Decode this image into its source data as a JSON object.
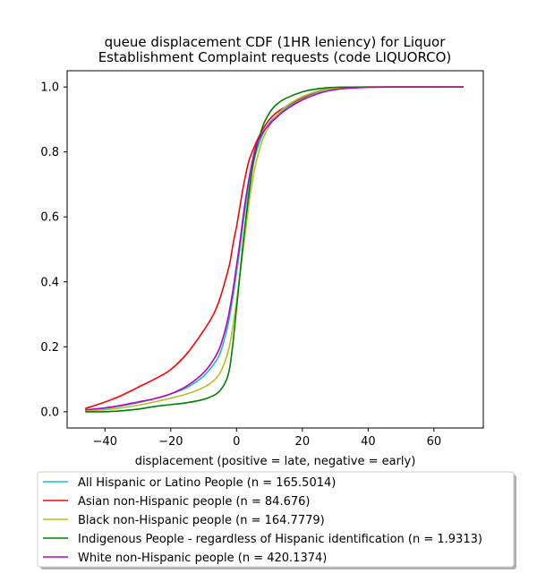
{
  "chart_data": {
    "type": "line",
    "title": [
      "queue displacement CDF (1HR leniency) for Liquor",
      "Establishment Complaint  requests (code LIQUORCO)"
    ],
    "xlabel": "displacement (positive = late, negative = early)",
    "ylabel": "",
    "xlim": [
      -51.5,
      75
    ],
    "ylim": [
      -0.05,
      1.05
    ],
    "xticks": [
      -40,
      -20,
      0,
      20,
      40,
      60
    ],
    "yticks": [
      0.0,
      0.2,
      0.4,
      0.6,
      0.8,
      1.0
    ],
    "grid": false,
    "legend_position": "below",
    "series": [
      {
        "name": "All Hispanic or Latino People (n = 165.5014)",
        "color": "#17becf",
        "points": [
          [
            -46,
            0.005
          ],
          [
            -40,
            0.01
          ],
          [
            -35,
            0.018
          ],
          [
            -30,
            0.028
          ],
          [
            -25,
            0.04
          ],
          [
            -20,
            0.055
          ],
          [
            -15,
            0.075
          ],
          [
            -10,
            0.11
          ],
          [
            -7,
            0.145
          ],
          [
            -5,
            0.18
          ],
          [
            -3,
            0.25
          ],
          [
            -2,
            0.3
          ],
          [
            -1,
            0.36
          ],
          [
            0,
            0.43
          ],
          [
            1,
            0.5
          ],
          [
            2,
            0.58
          ],
          [
            3,
            0.65
          ],
          [
            4,
            0.71
          ],
          [
            5,
            0.76
          ],
          [
            6,
            0.8
          ],
          [
            8,
            0.855
          ],
          [
            10,
            0.89
          ],
          [
            12,
            0.91
          ],
          [
            15,
            0.935
          ],
          [
            20,
            0.965
          ],
          [
            25,
            0.985
          ],
          [
            30,
            0.995
          ],
          [
            40,
            0.999
          ],
          [
            50,
            1.0
          ],
          [
            69,
            1.0
          ]
        ]
      },
      {
        "name": "Asian non-Hispanic people (n = 84.676)",
        "color": "#ff0000",
        "points": [
          [
            -46,
            0.01
          ],
          [
            -40,
            0.03
          ],
          [
            -35,
            0.05
          ],
          [
            -30,
            0.075
          ],
          [
            -25,
            0.1
          ],
          [
            -20,
            0.13
          ],
          [
            -15,
            0.18
          ],
          [
            -10,
            0.25
          ],
          [
            -7,
            0.3
          ],
          [
            -5,
            0.35
          ],
          [
            -3,
            0.42
          ],
          [
            -2,
            0.46
          ],
          [
            -1,
            0.52
          ],
          [
            0,
            0.57
          ],
          [
            1,
            0.63
          ],
          [
            2,
            0.69
          ],
          [
            3,
            0.74
          ],
          [
            4,
            0.78
          ],
          [
            6,
            0.83
          ],
          [
            8,
            0.87
          ],
          [
            10,
            0.9
          ],
          [
            12,
            0.92
          ],
          [
            15,
            0.94
          ],
          [
            20,
            0.968
          ],
          [
            25,
            0.988
          ],
          [
            30,
            0.997
          ],
          [
            40,
            1.0
          ],
          [
            69,
            1.0
          ]
        ]
      },
      {
        "name": "Black non-Hispanic people (n = 164.7779)",
        "color": "#bcbd22",
        "points": [
          [
            -46,
            0.003
          ],
          [
            -40,
            0.006
          ],
          [
            -35,
            0.012
          ],
          [
            -30,
            0.02
          ],
          [
            -25,
            0.03
          ],
          [
            -20,
            0.042
          ],
          [
            -15,
            0.055
          ],
          [
            -10,
            0.075
          ],
          [
            -7,
            0.095
          ],
          [
            -5,
            0.12
          ],
          [
            -3,
            0.17
          ],
          [
            -2,
            0.21
          ],
          [
            -1,
            0.27
          ],
          [
            0,
            0.34
          ],
          [
            1,
            0.42
          ],
          [
            2,
            0.5
          ],
          [
            3,
            0.58
          ],
          [
            4,
            0.66
          ],
          [
            5,
            0.72
          ],
          [
            6,
            0.77
          ],
          [
            8,
            0.84
          ],
          [
            10,
            0.88
          ],
          [
            12,
            0.91
          ],
          [
            15,
            0.94
          ],
          [
            20,
            0.97
          ],
          [
            25,
            0.988
          ],
          [
            30,
            0.996
          ],
          [
            40,
            1.0
          ],
          [
            69,
            1.0
          ]
        ]
      },
      {
        "name": "Indigenous People - regardless of Hispanic identification (n = 1.9313)",
        "color": "#008000",
        "points": [
          [
            -46,
            0.0
          ],
          [
            -40,
            0.0
          ],
          [
            -35,
            0.003
          ],
          [
            -30,
            0.008
          ],
          [
            -25,
            0.016
          ],
          [
            -20,
            0.022
          ],
          [
            -15,
            0.028
          ],
          [
            -10,
            0.038
          ],
          [
            -7,
            0.05
          ],
          [
            -5,
            0.065
          ],
          [
            -3,
            0.1
          ],
          [
            -2,
            0.14
          ],
          [
            -1,
            0.22
          ],
          [
            0,
            0.32
          ],
          [
            1,
            0.42
          ],
          [
            2,
            0.52
          ],
          [
            3,
            0.61
          ],
          [
            4,
            0.69
          ],
          [
            5,
            0.76
          ],
          [
            6,
            0.81
          ],
          [
            8,
            0.88
          ],
          [
            10,
            0.92
          ],
          [
            12,
            0.945
          ],
          [
            15,
            0.965
          ],
          [
            20,
            0.985
          ],
          [
            25,
            0.995
          ],
          [
            30,
            0.999
          ],
          [
            40,
            1.0
          ],
          [
            69,
            1.0
          ]
        ]
      },
      {
        "name": "White non-Hispanic people (n = 420.1374)",
        "color": "#bf00bf",
        "points": [
          [
            -46,
            0.006
          ],
          [
            -40,
            0.012
          ],
          [
            -35,
            0.02
          ],
          [
            -30,
            0.03
          ],
          [
            -25,
            0.04
          ],
          [
            -20,
            0.055
          ],
          [
            -15,
            0.08
          ],
          [
            -10,
            0.12
          ],
          [
            -7,
            0.16
          ],
          [
            -5,
            0.2
          ],
          [
            -3,
            0.27
          ],
          [
            -2,
            0.32
          ],
          [
            -1,
            0.38
          ],
          [
            0,
            0.45
          ],
          [
            1,
            0.52
          ],
          [
            2,
            0.6
          ],
          [
            3,
            0.67
          ],
          [
            4,
            0.73
          ],
          [
            5,
            0.78
          ],
          [
            6,
            0.82
          ],
          [
            8,
            0.86
          ],
          [
            10,
            0.885
          ],
          [
            12,
            0.905
          ],
          [
            15,
            0.93
          ],
          [
            20,
            0.96
          ],
          [
            25,
            0.98
          ],
          [
            30,
            0.992
          ],
          [
            40,
            0.999
          ],
          [
            50,
            1.0
          ],
          [
            69,
            1.0
          ]
        ]
      }
    ]
  }
}
